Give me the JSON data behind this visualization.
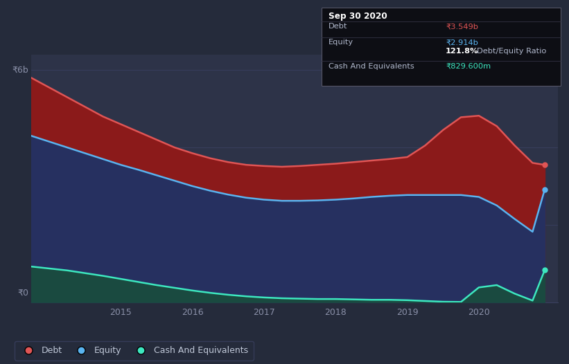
{
  "background_color": "#252b3b",
  "plot_bg_color": "#2d3348",
  "grid_color": "#3a4060",
  "tooltip_title": "Sep 30 2020",
  "tooltip_debt_label": "Debt",
  "tooltip_debt_value": "₹3.549b",
  "tooltip_equity_label": "Equity",
  "tooltip_equity_value": "₹2.914b",
  "tooltip_ratio": "121.8% Debt/Equity Ratio",
  "tooltip_cash_label": "Cash And Equivalents",
  "tooltip_cash_value": "₹829.600m",
  "ylabel_top": "₹6b",
  "ylabel_bottom": "₹0",
  "years": [
    2013.75,
    2014.0,
    2014.25,
    2014.5,
    2014.75,
    2015.0,
    2015.25,
    2015.5,
    2015.75,
    2016.0,
    2016.25,
    2016.5,
    2016.75,
    2017.0,
    2017.25,
    2017.5,
    2017.75,
    2018.0,
    2018.25,
    2018.5,
    2018.75,
    2019.0,
    2019.25,
    2019.5,
    2019.75,
    2020.0,
    2020.25,
    2020.5,
    2020.75,
    2020.92
  ],
  "debt": [
    5.8,
    5.55,
    5.3,
    5.05,
    4.8,
    4.6,
    4.4,
    4.2,
    4.0,
    3.85,
    3.72,
    3.62,
    3.55,
    3.52,
    3.5,
    3.52,
    3.55,
    3.58,
    3.62,
    3.66,
    3.7,
    3.75,
    4.05,
    4.45,
    4.78,
    4.82,
    4.55,
    4.05,
    3.6,
    3.549
  ],
  "equity": [
    4.3,
    4.15,
    4.0,
    3.85,
    3.7,
    3.55,
    3.42,
    3.28,
    3.14,
    3.0,
    2.88,
    2.78,
    2.7,
    2.65,
    2.62,
    2.62,
    2.63,
    2.65,
    2.68,
    2.72,
    2.75,
    2.77,
    2.77,
    2.77,
    2.77,
    2.72,
    2.5,
    2.15,
    1.82,
    2.914
  ],
  "cash": [
    0.92,
    0.87,
    0.82,
    0.75,
    0.68,
    0.6,
    0.52,
    0.44,
    0.37,
    0.3,
    0.24,
    0.19,
    0.15,
    0.12,
    0.1,
    0.09,
    0.08,
    0.08,
    0.07,
    0.06,
    0.06,
    0.05,
    0.03,
    0.01,
    0.005,
    0.38,
    0.44,
    0.22,
    0.04,
    0.8296
  ],
  "debt_line_color": "#e05555",
  "equity_line_color": "#5ab4f0",
  "cash_line_color": "#3de8c0",
  "debt_fill_color": "#8b1a1a",
  "equity_fill_color": "#263060",
  "cash_fill_color": "#1a4a40",
  "legend_labels": [
    "Debt",
    "Equity",
    "Cash And Equivalents"
  ],
  "legend_dot_colors": [
    "#e05555",
    "#5ab4f0",
    "#3de8c0"
  ],
  "xticks": [
    2015,
    2016,
    2017,
    2018,
    2019,
    2020
  ],
  "yticks": [
    0,
    2,
    4,
    6
  ],
  "ylim": [
    0,
    6.4
  ],
  "xlim_start": 2013.75,
  "xlim_end": 2021.1
}
